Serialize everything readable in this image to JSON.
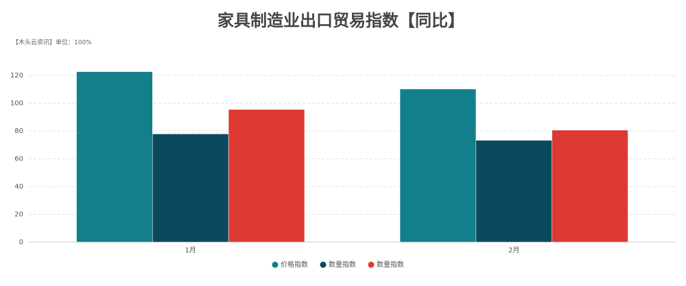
{
  "chart_data": {
    "type": "bar",
    "title": "家具制造业出口贸易指数【同比】",
    "subtitle": "【木头云资讯】单位：100%",
    "categories": [
      "1月",
      "2月"
    ],
    "series": [
      {
        "name": "价格指数",
        "color": "#137f8a",
        "values": [
          122.7,
          110.2
        ]
      },
      {
        "name": "数量指数",
        "color": "#0b4a5e",
        "values": [
          77.9,
          73.3
        ]
      },
      {
        "name": "数量指数",
        "color": "#dc3a32",
        "values": [
          95.5,
          80.6
        ]
      }
    ],
    "ylim": [
      0,
      120
    ],
    "yticks": [
      0,
      20,
      40,
      60,
      80,
      100,
      120
    ],
    "grid": true,
    "legend": "bottom"
  }
}
